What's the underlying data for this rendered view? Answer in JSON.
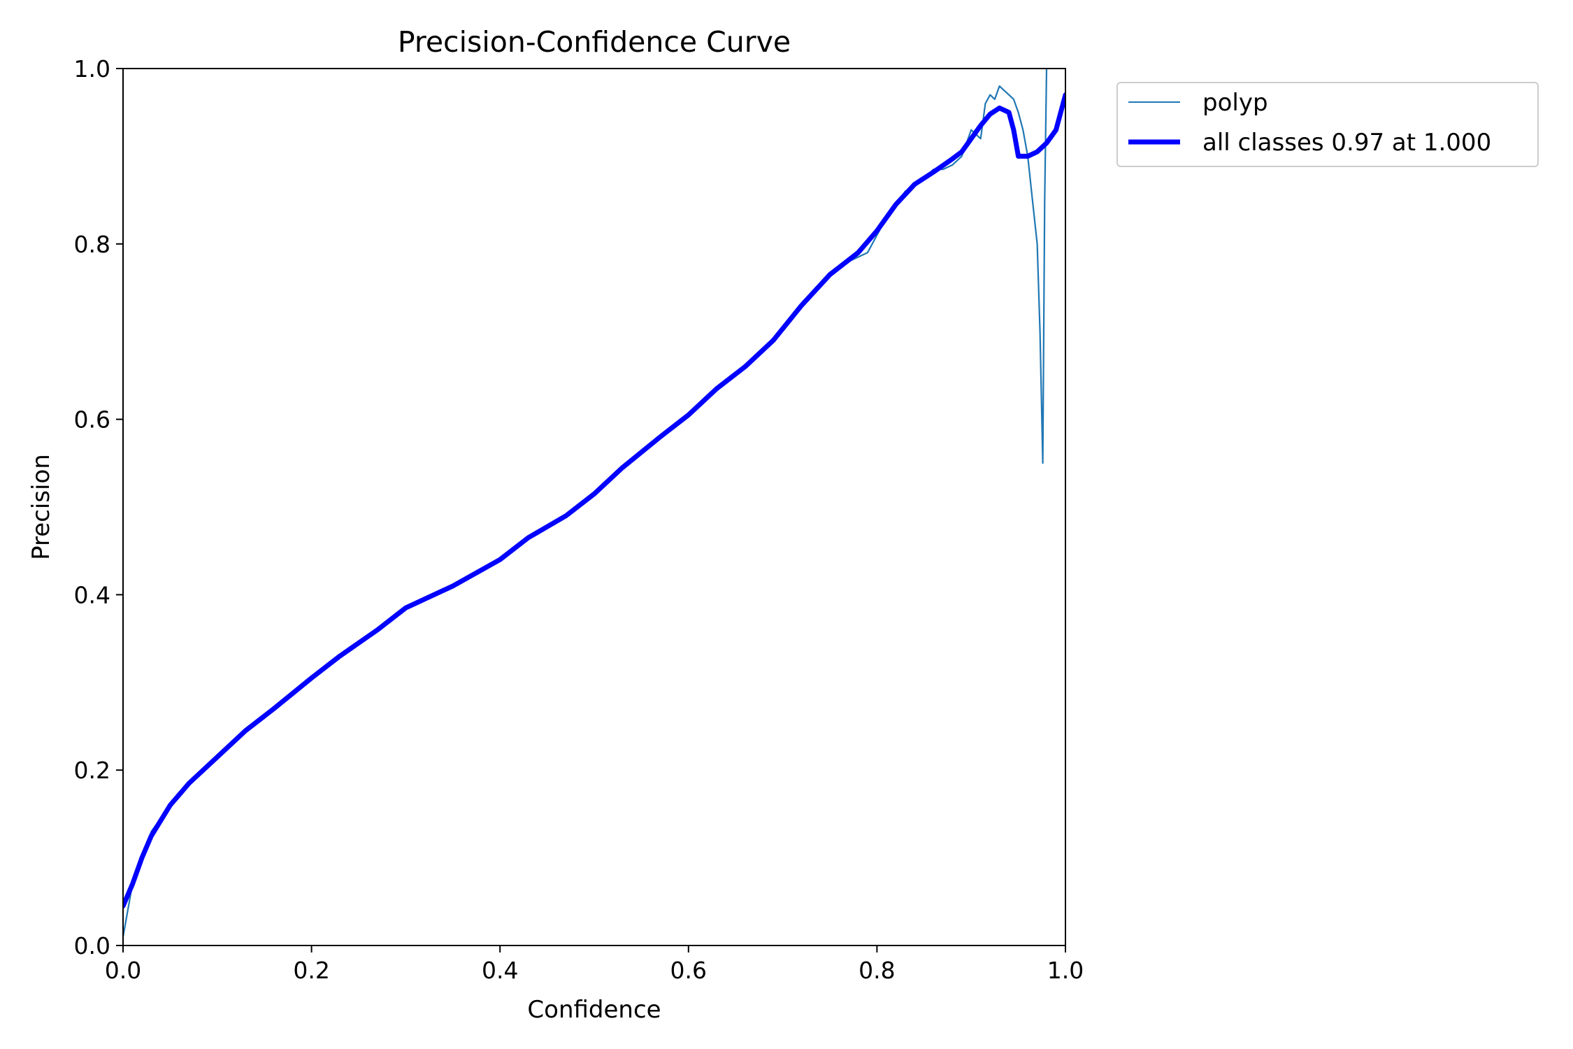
{
  "chart_data": {
    "type": "line",
    "title": "Precision-Confidence Curve",
    "xlabel": "Confidence",
    "ylabel": "Precision",
    "xlim": [
      0.0,
      1.0
    ],
    "ylim": [
      0.0,
      1.0
    ],
    "x_ticks": [
      "0.0",
      "0.2",
      "0.4",
      "0.6",
      "0.8",
      "1.0"
    ],
    "y_ticks": [
      "0.0",
      "0.2",
      "0.4",
      "0.6",
      "0.8",
      "1.0"
    ],
    "grid": false,
    "legend_position": "outside-top-right",
    "series": [
      {
        "name": "polyp",
        "color": "#1f77b4",
        "x": [
          0.0,
          0.01,
          0.02,
          0.03,
          0.05,
          0.07,
          0.1,
          0.13,
          0.16,
          0.2,
          0.23,
          0.27,
          0.3,
          0.35,
          0.4,
          0.43,
          0.47,
          0.5,
          0.53,
          0.57,
          0.6,
          0.63,
          0.66,
          0.69,
          0.72,
          0.75,
          0.77,
          0.79,
          0.81,
          0.83,
          0.85,
          0.86,
          0.87,
          0.88,
          0.89,
          0.9,
          0.91,
          0.915,
          0.92,
          0.925,
          0.93,
          0.935,
          0.94,
          0.945,
          0.95,
          0.955,
          0.96,
          0.965,
          0.97,
          0.973,
          0.976,
          0.978,
          0.98
        ],
        "y": [
          0.01,
          0.07,
          0.1,
          0.13,
          0.16,
          0.185,
          0.215,
          0.245,
          0.27,
          0.305,
          0.33,
          0.36,
          0.385,
          0.41,
          0.44,
          0.465,
          0.49,
          0.515,
          0.545,
          0.58,
          0.605,
          0.635,
          0.66,
          0.69,
          0.73,
          0.765,
          0.78,
          0.79,
          0.83,
          0.86,
          0.875,
          0.885,
          0.885,
          0.89,
          0.9,
          0.93,
          0.92,
          0.96,
          0.97,
          0.965,
          0.98,
          0.975,
          0.97,
          0.965,
          0.95,
          0.93,
          0.9,
          0.85,
          0.8,
          0.7,
          0.55,
          0.85,
          1.0
        ]
      },
      {
        "name": "all classes 0.97 at 1.000",
        "color": "#0000ff",
        "x": [
          0.0,
          0.01,
          0.02,
          0.03,
          0.05,
          0.07,
          0.1,
          0.13,
          0.16,
          0.2,
          0.23,
          0.27,
          0.3,
          0.35,
          0.4,
          0.43,
          0.47,
          0.5,
          0.53,
          0.57,
          0.6,
          0.63,
          0.66,
          0.69,
          0.72,
          0.75,
          0.78,
          0.8,
          0.82,
          0.84,
          0.86,
          0.88,
          0.89,
          0.9,
          0.91,
          0.92,
          0.93,
          0.94,
          0.945,
          0.95,
          0.96,
          0.97,
          0.98,
          0.99,
          1.0
        ],
        "y": [
          0.045,
          0.07,
          0.1,
          0.125,
          0.16,
          0.185,
          0.215,
          0.245,
          0.27,
          0.305,
          0.33,
          0.36,
          0.385,
          0.41,
          0.44,
          0.465,
          0.49,
          0.515,
          0.545,
          0.58,
          0.605,
          0.635,
          0.66,
          0.69,
          0.73,
          0.765,
          0.79,
          0.815,
          0.845,
          0.868,
          0.882,
          0.897,
          0.905,
          0.92,
          0.935,
          0.948,
          0.955,
          0.95,
          0.93,
          0.9,
          0.9,
          0.905,
          0.915,
          0.93,
          0.97
        ]
      }
    ]
  }
}
